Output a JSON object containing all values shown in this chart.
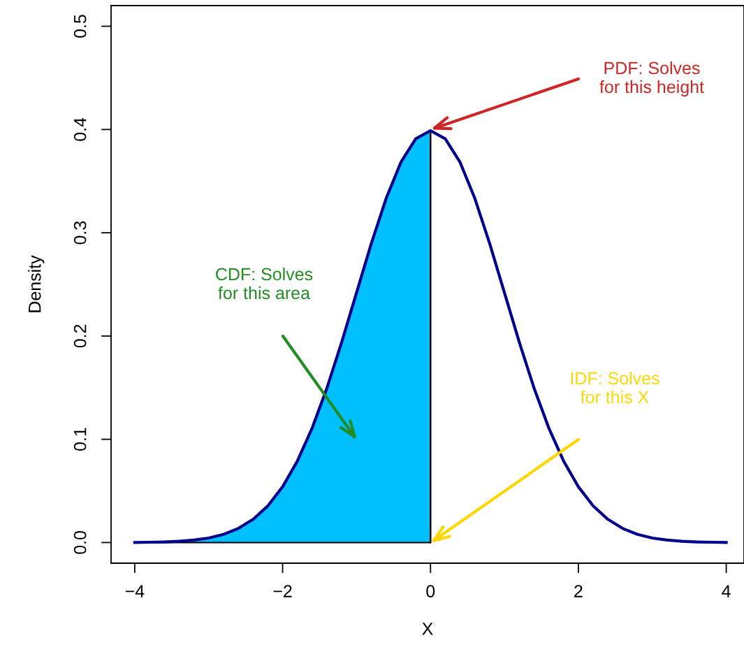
{
  "chart_data": {
    "type": "line",
    "xlabel": "X",
    "ylabel": "Density",
    "xlim": [
      -4.32,
      4.24
    ],
    "ylim": [
      -0.02,
      0.52
    ],
    "xticks": [
      {
        "value": -4,
        "label": "−4"
      },
      {
        "value": -2,
        "label": "−2"
      },
      0,
      2,
      4
    ],
    "yticks": [
      {
        "value": 0,
        "label": "0.0"
      },
      {
        "value": 0.1,
        "label": "0.1"
      },
      {
        "value": 0.2,
        "label": "0.2"
      },
      {
        "value": 0.3,
        "label": "0.3"
      },
      {
        "value": 0.4,
        "label": "0.4"
      },
      {
        "value": 0.5,
        "label": "0.5"
      }
    ],
    "legend": false,
    "series": [
      {
        "type": "area",
        "color": "#00bfff",
        "x": [
          -4,
          -3.8,
          -3.6,
          -3.4,
          -3.2,
          -3,
          -2.8,
          -2.6,
          -2.4,
          -2.2,
          -2,
          -1.8,
          -1.6,
          -1.4,
          -1.2,
          -1,
          -0.8,
          -0.6,
          -0.4,
          -0.2,
          0
        ],
        "values": [
          0.0001,
          0.0003,
          0.0006,
          0.0012,
          0.0024,
          0.0044,
          0.0079,
          0.0136,
          0.0224,
          0.0355,
          0.054,
          0.079,
          0.1109,
          0.1497,
          0.1942,
          0.242,
          0.2897,
          0.3332,
          0.3683,
          0.391,
          0.3989
        ]
      },
      {
        "color": "#00008b",
        "x": [
          -4,
          -3.8,
          -3.6,
          -3.4,
          -3.2,
          -3,
          -2.8,
          -2.6,
          -2.4,
          -2.2,
          -2,
          -1.8,
          -1.6,
          -1.4,
          -1.2,
          -1,
          -0.8,
          -0.6,
          -0.4,
          -0.2,
          0,
          0.2,
          0.4,
          0.6,
          0.8,
          1,
          1.2,
          1.4,
          1.6,
          1.8,
          2,
          2.2,
          2.4,
          2.6,
          2.8,
          3,
          3.2,
          3.4,
          3.6,
          3.8,
          4
        ],
        "values": [
          0.0001,
          0.0003,
          0.0006,
          0.0012,
          0.0024,
          0.0044,
          0.0079,
          0.0136,
          0.0224,
          0.0355,
          0.054,
          0.079,
          0.1109,
          0.1497,
          0.1942,
          0.242,
          0.2897,
          0.3332,
          0.3683,
          0.391,
          0.3989,
          0.391,
          0.3683,
          0.3332,
          0.2897,
          0.242,
          0.1942,
          0.1497,
          0.1109,
          0.079,
          0.054,
          0.0355,
          0.0224,
          0.0136,
          0.0079,
          0.0044,
          0.0024,
          0.0012,
          0.0006,
          0.0003,
          0.0001
        ]
      }
    ],
    "annotations": [
      {
        "text": "PDF: Solves\nfor this height",
        "x": 0,
        "y": 0.4
      },
      "CDF: Solves\nfor this area",
      "IDF: Solves\nfor this X"
    ]
  }
}
